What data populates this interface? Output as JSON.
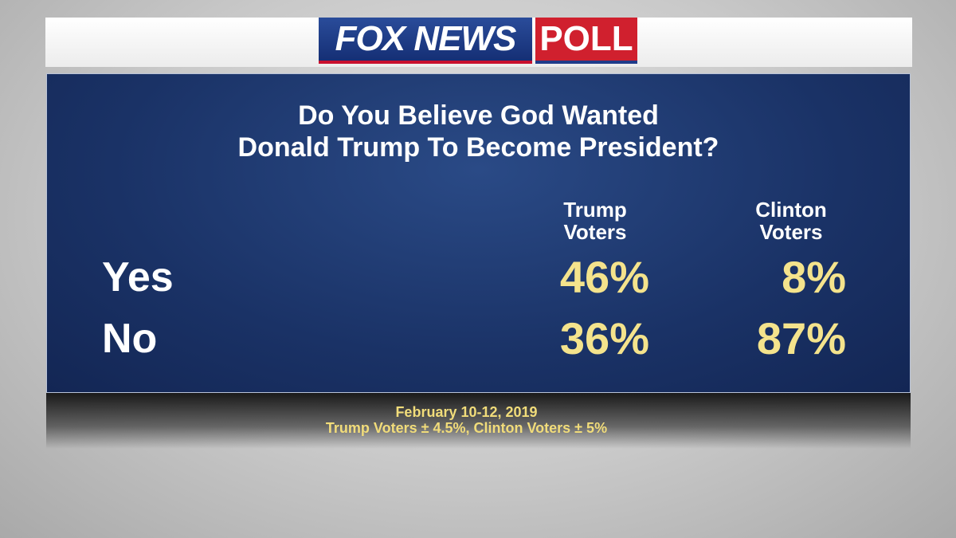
{
  "header": {
    "brand": "FOX NEWS",
    "badge": "POLL"
  },
  "title": [
    "Do You Believe God Wanted",
    "Donald Trump To Become President?"
  ],
  "table": {
    "columns": [
      [
        "Trump",
        "Voters"
      ],
      [
        "Clinton",
        "Voters"
      ]
    ],
    "rows": [
      {
        "label": "Yes",
        "values": [
          "46%",
          "8%"
        ]
      },
      {
        "label": "No",
        "values": [
          "36%",
          "87%"
        ]
      }
    ]
  },
  "footer": [
    "February 10-12, 2019",
    "Trump Voters ± 4.5%, Clinton Voters ± 5%"
  ]
}
